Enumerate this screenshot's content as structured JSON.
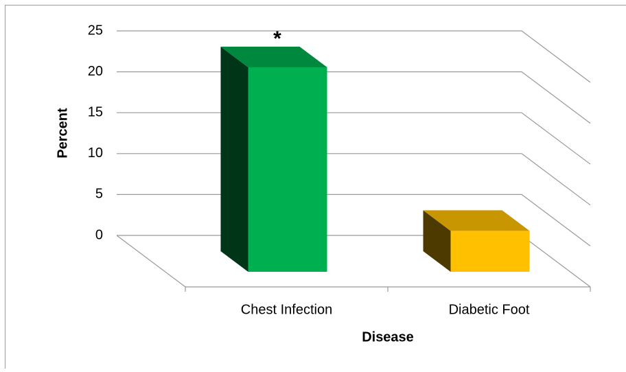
{
  "chart_data": {
    "type": "bar3d",
    "categories": [
      "Chest Infection",
      "Diabetic Foot"
    ],
    "values": [
      25,
      5
    ],
    "colors": [
      "#00b050",
      "#ffc000"
    ],
    "annotations": [
      {
        "category": 0,
        "text": "*"
      }
    ],
    "xlabel": "Disease",
    "ylabel": "Percent",
    "ylim": [
      0,
      25
    ],
    "yticks": [
      0,
      5,
      10,
      15,
      20,
      25
    ],
    "grid": true
  }
}
